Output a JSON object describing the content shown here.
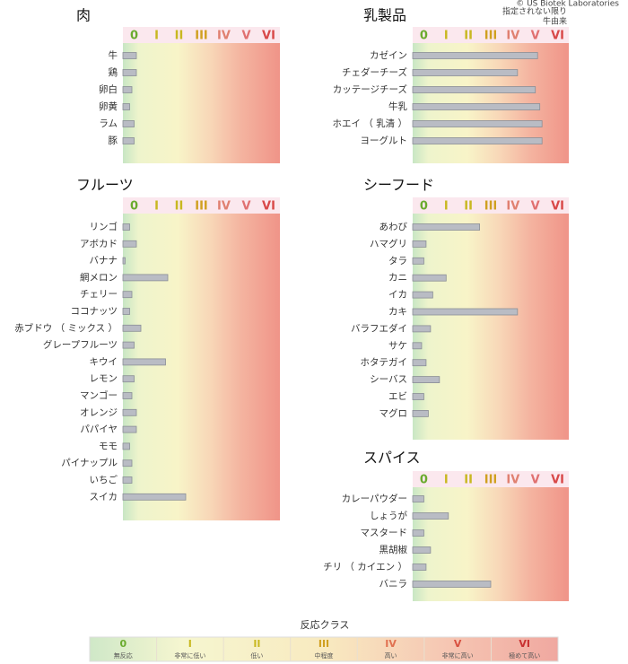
{
  "header": {
    "copyright": "© US Biotek Laboratories",
    "note1": "指定されない限り",
    "note2": "牛由来"
  },
  "chart_data": [
    {
      "type": "bar",
      "orientation": "horizontal",
      "title": "肉",
      "categories": [
        "牛",
        "鶏",
        "卵白",
        "卵黄",
        "ラム",
        "豚"
      ],
      "values": [
        0.6,
        0.6,
        0.4,
        0.3,
        0.5,
        0.5
      ],
      "xlim": [
        0,
        7
      ],
      "xticks": [
        {
          "value": 0.5,
          "label": "0"
        },
        {
          "value": 1.5,
          "label": "I"
        },
        {
          "value": 2.5,
          "label": "II"
        },
        {
          "value": 3.5,
          "label": "III"
        },
        {
          "value": 4.5,
          "label": "IV"
        },
        {
          "value": 5.5,
          "label": "V"
        },
        {
          "value": 6.5,
          "label": "VI"
        }
      ],
      "tick_colors": [
        "#6aab2e",
        "#c8b820",
        "#c8b820",
        "#d0a020",
        "#e08070",
        "#e07070",
        "#d84848"
      ],
      "color": "#b9bcc4"
    },
    {
      "type": "bar",
      "orientation": "horizontal",
      "title": "乳製品",
      "categories": [
        "カゼイン",
        "チェダーチーズ",
        "カッテージチーズ",
        "牛乳",
        "ホエイ （ 乳清 ）",
        "ヨーグルト"
      ],
      "values": [
        5.6,
        4.7,
        5.5,
        5.7,
        5.8,
        5.8
      ],
      "xlim": [
        0,
        7
      ],
      "xticks": [
        {
          "value": 0.5,
          "label": "0"
        },
        {
          "value": 1.5,
          "label": "I"
        },
        {
          "value": 2.5,
          "label": "II"
        },
        {
          "value": 3.5,
          "label": "III"
        },
        {
          "value": 4.5,
          "label": "IV"
        },
        {
          "value": 5.5,
          "label": "V"
        },
        {
          "value": 6.5,
          "label": "VI"
        }
      ],
      "tick_colors": [
        "#6aab2e",
        "#c8b820",
        "#c8b820",
        "#d0a020",
        "#e08070",
        "#e07070",
        "#d84848"
      ],
      "color": "#b9bcc4"
    },
    {
      "type": "bar",
      "orientation": "horizontal",
      "title": "フルーツ",
      "categories": [
        "リンゴ",
        "アボカド",
        "バナナ",
        "網メロン",
        "チェリー",
        "ココナッツ",
        "赤ブドウ （ ミックス ）",
        "グレープフルーツ",
        "キウイ",
        "レモン",
        "マンゴー",
        "オレンジ",
        "パパイヤ",
        "モモ",
        "パイナップル",
        "いちご",
        "スイカ"
      ],
      "values": [
        0.3,
        0.6,
        0.1,
        2.0,
        0.4,
        0.3,
        0.8,
        0.5,
        1.9,
        0.5,
        0.4,
        0.6,
        0.6,
        0.3,
        0.4,
        0.4,
        2.8
      ],
      "xlim": [
        0,
        7
      ],
      "xticks": [
        {
          "value": 0.5,
          "label": "0"
        },
        {
          "value": 1.5,
          "label": "I"
        },
        {
          "value": 2.5,
          "label": "II"
        },
        {
          "value": 3.5,
          "label": "III"
        },
        {
          "value": 4.5,
          "label": "IV"
        },
        {
          "value": 5.5,
          "label": "V"
        },
        {
          "value": 6.5,
          "label": "VI"
        }
      ],
      "tick_colors": [
        "#6aab2e",
        "#c8b820",
        "#c8b820",
        "#d0a020",
        "#e08070",
        "#e07070",
        "#d84848"
      ],
      "color": "#b9bcc4"
    },
    {
      "type": "bar",
      "orientation": "horizontal",
      "title": "シーフード",
      "categories": [
        "あわび",
        "ハマグリ",
        "タラ",
        "カニ",
        "イカ",
        "カキ",
        "バラフエダイ",
        "サケ",
        "ホタテガイ",
        "シーバス",
        "エビ",
        "マグロ"
      ],
      "values": [
        3.0,
        0.6,
        0.5,
        1.5,
        0.9,
        4.7,
        0.8,
        0.4,
        0.6,
        1.2,
        0.5,
        0.7
      ],
      "xlim": [
        0,
        7
      ],
      "xticks": [
        {
          "value": 0.5,
          "label": "0"
        },
        {
          "value": 1.5,
          "label": "I"
        },
        {
          "value": 2.5,
          "label": "II"
        },
        {
          "value": 3.5,
          "label": "III"
        },
        {
          "value": 4.5,
          "label": "IV"
        },
        {
          "value": 5.5,
          "label": "V"
        },
        {
          "value": 6.5,
          "label": "VI"
        }
      ],
      "tick_colors": [
        "#6aab2e",
        "#c8b820",
        "#c8b820",
        "#d0a020",
        "#e08070",
        "#e07070",
        "#d84848"
      ],
      "color": "#b9bcc4"
    },
    {
      "type": "bar",
      "orientation": "horizontal",
      "title": "スパイス",
      "categories": [
        "カレーパウダー",
        "しょうが",
        "マスタード",
        "黒胡椒",
        "チリ （ カイエン ）",
        "バニラ"
      ],
      "values": [
        0.5,
        1.6,
        0.5,
        0.8,
        0.6,
        3.5
      ],
      "xlim": [
        0,
        7
      ],
      "xticks": [
        {
          "value": 0.5,
          "label": "0"
        },
        {
          "value": 1.5,
          "label": "I"
        },
        {
          "value": 2.5,
          "label": "II"
        },
        {
          "value": 3.5,
          "label": "III"
        },
        {
          "value": 4.5,
          "label": "IV"
        },
        {
          "value": 5.5,
          "label": "V"
        },
        {
          "value": 6.5,
          "label": "VI"
        }
      ],
      "tick_colors": [
        "#6aab2e",
        "#c8b820",
        "#c8b820",
        "#d0a020",
        "#e08070",
        "#e07070",
        "#d84848"
      ],
      "color": "#b9bcc4"
    }
  ],
  "legend": {
    "title": "反応クラス",
    "classes": [
      {
        "label": "0",
        "description": "無反応"
      },
      {
        "label": "I",
        "description": "非常に低い"
      },
      {
        "label": "II",
        "description": "低い"
      },
      {
        "label": "III",
        "description": "中程度"
      },
      {
        "label": "IV",
        "description": "高い"
      },
      {
        "label": "V",
        "description": "非常に高い"
      },
      {
        "label": "VI",
        "description": "極めて高い"
      }
    ],
    "colors": [
      "#6aab2e",
      "#c8b820",
      "#c8b820",
      "#d0a020",
      "#e07050",
      "#d85040",
      "#c83030"
    ]
  }
}
